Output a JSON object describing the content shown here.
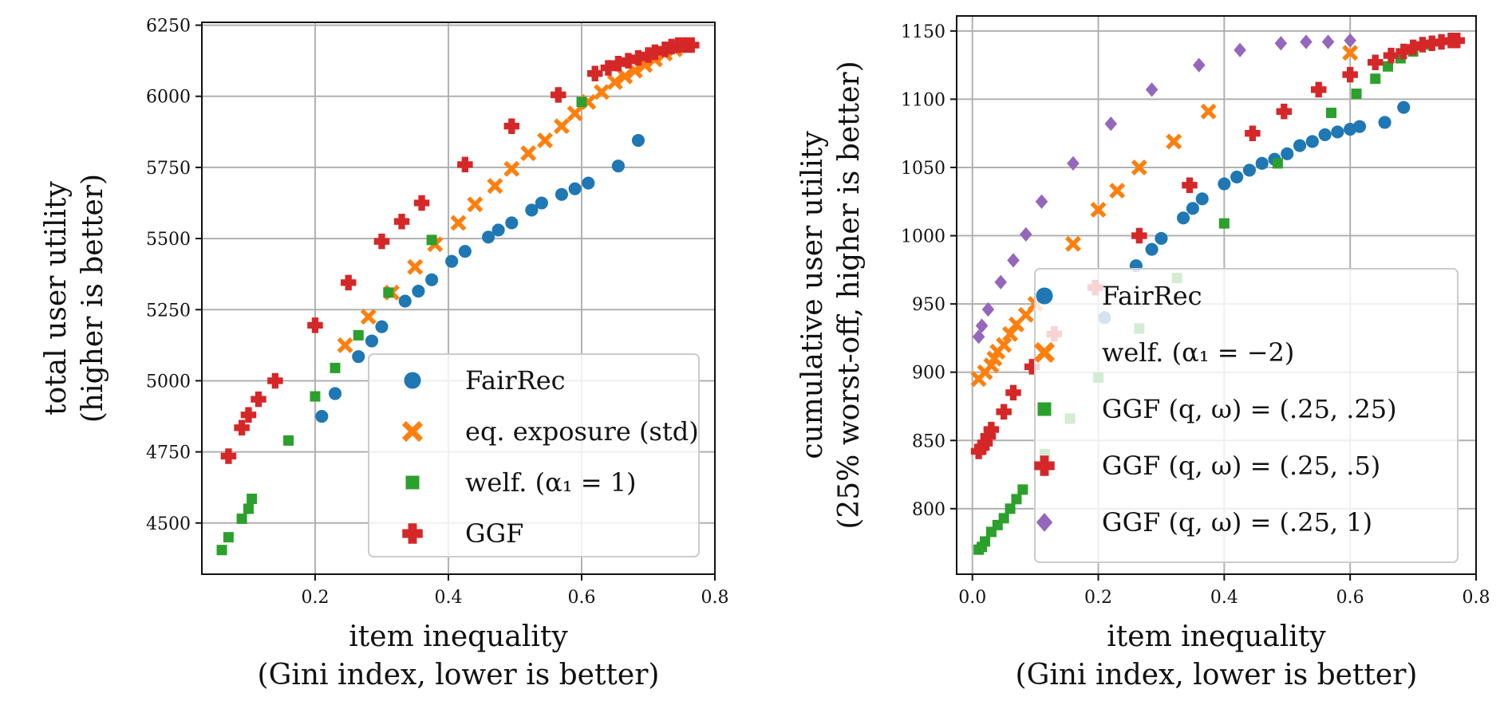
{
  "colors": {
    "blue": "#1f77b4",
    "orange": "#ff7f0e",
    "green": "#2ca02c",
    "red": "#d62728",
    "purple": "#9467bd"
  },
  "chart_data": [
    {
      "type": "scatter",
      "xlabel": [
        "item inequality",
        "(Gini index, lower is better)"
      ],
      "ylabel": [
        "total user utility",
        "(higher is better)"
      ],
      "xlim": [
        0.03,
        0.8
      ],
      "ylim": [
        4320,
        6260
      ],
      "xticks": [
        0.2,
        0.4,
        0.6,
        0.8
      ],
      "xtick_labels": [
        "0.2",
        "0.4",
        "0.6",
        "0.8"
      ],
      "yticks": [
        4500,
        4750,
        5000,
        5250,
        5500,
        5750,
        6000,
        6250
      ],
      "ytick_labels": [
        "4500",
        "4750",
        "5000",
        "5250",
        "5500",
        "5750",
        "6000",
        "6250"
      ],
      "grid": true,
      "legend_position": "lower-right",
      "series": [
        {
          "name": "FairRec",
          "marker": "circle",
          "color": "#1f77b4",
          "x": [
            0.21,
            0.23,
            0.265,
            0.285,
            0.3,
            0.335,
            0.355,
            0.375,
            0.405,
            0.425,
            0.46,
            0.475,
            0.495,
            0.525,
            0.54,
            0.57,
            0.59,
            0.61,
            0.655,
            0.685
          ],
          "y": [
            4875,
            4955,
            5085,
            5140,
            5190,
            5280,
            5315,
            5355,
            5420,
            5455,
            5505,
            5530,
            5555,
            5600,
            5625,
            5655,
            5675,
            5695,
            5755,
            5845
          ]
        },
        {
          "name": "eq. exposure (std)",
          "marker": "x",
          "color": "#ff7f0e",
          "x": [
            0.245,
            0.28,
            0.315,
            0.35,
            0.38,
            0.415,
            0.44,
            0.47,
            0.495,
            0.52,
            0.545,
            0.57,
            0.59,
            0.61,
            0.63,
            0.65,
            0.665,
            0.68,
            0.695,
            0.71,
            0.725,
            0.74,
            0.755
          ],
          "y": [
            5125,
            5225,
            5310,
            5400,
            5480,
            5555,
            5620,
            5685,
            5745,
            5800,
            5845,
            5895,
            5940,
            5980,
            6015,
            6050,
            6070,
            6090,
            6110,
            6130,
            6150,
            6165,
            6180
          ]
        },
        {
          "name": "welf. (α₁ = 1)",
          "marker": "square",
          "color": "#2ca02c",
          "x": [
            0.06,
            0.07,
            0.09,
            0.1,
            0.105,
            0.16,
            0.2,
            0.23,
            0.265,
            0.31,
            0.375,
            0.6,
            0.74
          ],
          "y": [
            4405,
            4450,
            4515,
            4550,
            4585,
            4790,
            4945,
            5045,
            5160,
            5310,
            5495,
            5980,
            6170
          ]
        },
        {
          "name": "GGF",
          "marker": "plus",
          "color": "#d62728",
          "x": [
            0.07,
            0.09,
            0.1,
            0.115,
            0.14,
            0.2,
            0.25,
            0.3,
            0.33,
            0.36,
            0.425,
            0.495,
            0.565,
            0.62,
            0.64,
            0.655,
            0.67,
            0.685,
            0.7,
            0.71,
            0.725,
            0.735,
            0.745,
            0.755,
            0.765
          ],
          "y": [
            4735,
            4835,
            4880,
            4935,
            5000,
            5195,
            5345,
            5490,
            5560,
            5625,
            5760,
            5895,
            6005,
            6080,
            6100,
            6115,
            6125,
            6135,
            6145,
            6155,
            6165,
            6175,
            6180,
            6180,
            6180
          ]
        }
      ]
    },
    {
      "type": "scatter",
      "xlabel": [
        "item inequality",
        "(Gini index, lower is better)"
      ],
      "ylabel": [
        "cumulative user utility",
        "(25% worst-off, higher is better)"
      ],
      "xlim": [
        -0.025,
        0.8
      ],
      "ylim": [
        752,
        1161
      ],
      "xticks": [
        0.0,
        0.2,
        0.4,
        0.6,
        0.8
      ],
      "xtick_labels": [
        "0.0",
        "0.2",
        "0.4",
        "0.6",
        "0.8"
      ],
      "yticks": [
        800,
        850,
        900,
        950,
        1000,
        1050,
        1100,
        1150
      ],
      "ytick_labels": [
        "800",
        "850",
        "900",
        "950",
        "1000",
        "1050",
        "1100",
        "1150"
      ],
      "grid": true,
      "legend_position": "lower-right",
      "series": [
        {
          "name": "FairRec",
          "marker": "circle",
          "color": "#1f77b4",
          "x": [
            0.21,
            0.26,
            0.285,
            0.3,
            0.335,
            0.35,
            0.365,
            0.4,
            0.42,
            0.44,
            0.46,
            0.48,
            0.5,
            0.52,
            0.54,
            0.56,
            0.58,
            0.6,
            0.615,
            0.655,
            0.685
          ],
          "y": [
            940,
            978,
            990,
            998,
            1013,
            1020,
            1027,
            1038,
            1043,
            1048,
            1053,
            1056,
            1060,
            1066,
            1069,
            1074,
            1076,
            1078,
            1080,
            1083,
            1094
          ],
          "faded_below_legend": true
        },
        {
          "name": "welf. (α₁ = −2)",
          "marker": "x",
          "color": "#ff7f0e",
          "x": [
            0.01,
            0.02,
            0.03,
            0.035,
            0.04,
            0.05,
            0.06,
            0.07,
            0.085,
            0.1,
            0.16,
            0.2,
            0.23,
            0.265,
            0.32,
            0.375,
            0.6
          ],
          "y": [
            895,
            900,
            905,
            910,
            915,
            920,
            928,
            935,
            942,
            950,
            994,
            1019,
            1033,
            1050,
            1069,
            1091,
            1134
          ]
        },
        {
          "name": "GGF (q, ω) = (.25, .25)",
          "marker": "square",
          "color": "#2ca02c",
          "x": [
            0.01,
            0.015,
            0.02,
            0.03,
            0.04,
            0.05,
            0.06,
            0.07,
            0.08,
            0.115,
            0.155,
            0.2,
            0.265,
            0.325,
            0.4,
            0.485,
            0.57,
            0.61,
            0.64,
            0.66,
            0.68,
            0.7,
            0.72
          ],
          "y": [
            770,
            772,
            776,
            783,
            788,
            793,
            800,
            807,
            814,
            840,
            866,
            896,
            932,
            969,
            1009,
            1053,
            1090,
            1104,
            1115,
            1124,
            1130,
            1135,
            1140
          ]
        },
        {
          "name": "GGF (q, ω) = (.25, .5)",
          "marker": "plus",
          "color": "#d62728",
          "x": [
            0.01,
            0.015,
            0.02,
            0.025,
            0.03,
            0.05,
            0.065,
            0.095,
            0.13,
            0.195,
            0.265,
            0.345,
            0.445,
            0.495,
            0.55,
            0.6,
            0.64,
            0.665,
            0.685,
            0.7,
            0.715,
            0.73,
            0.745,
            0.76,
            0.77
          ],
          "y": [
            842,
            845,
            848,
            853,
            858,
            871,
            885,
            904,
            928,
            962,
            1000,
            1037,
            1075,
            1091,
            1107,
            1118,
            1127,
            1132,
            1135,
            1138,
            1140,
            1141,
            1142,
            1143,
            1143
          ]
        },
        {
          "name": "GGF (q, ω) = (.25, 1)",
          "marker": "diamond",
          "color": "#9467bd",
          "x": [
            0.01,
            0.015,
            0.025,
            0.045,
            0.065,
            0.085,
            0.11,
            0.16,
            0.22,
            0.285,
            0.36,
            0.425,
            0.49,
            0.53,
            0.565,
            0.6
          ],
          "y": [
            926,
            934,
            946,
            966,
            982,
            1001,
            1025,
            1053,
            1082,
            1107,
            1125,
            1136,
            1141,
            1142,
            1142,
            1143
          ]
        }
      ]
    }
  ],
  "legends": [
    {
      "entries": [
        {
          "label": "FairRec",
          "marker": "circle",
          "color": "#1f77b4"
        },
        {
          "label": "eq. exposure (std)",
          "marker": "x",
          "color": "#ff7f0e"
        },
        {
          "label": "welf. (α₁ = 1)",
          "marker": "square",
          "color": "#2ca02c"
        },
        {
          "label": "GGF",
          "marker": "plus",
          "color": "#d62728"
        }
      ]
    },
    {
      "entries": [
        {
          "label": "FairRec",
          "marker": "circle",
          "color": "#1f77b4"
        },
        {
          "label": "welf. (α₁ = −2)",
          "marker": "x",
          "color": "#ff7f0e"
        },
        {
          "label": "GGF (q, ω) = (.25, .25)",
          "marker": "square",
          "color": "#2ca02c"
        },
        {
          "label": "GGF (q, ω) = (.25, .5)",
          "marker": "plus",
          "color": "#d62728"
        },
        {
          "label": "GGF (q, ω) = (.25, 1)",
          "marker": "diamond",
          "color": "#9467bd"
        }
      ]
    }
  ]
}
